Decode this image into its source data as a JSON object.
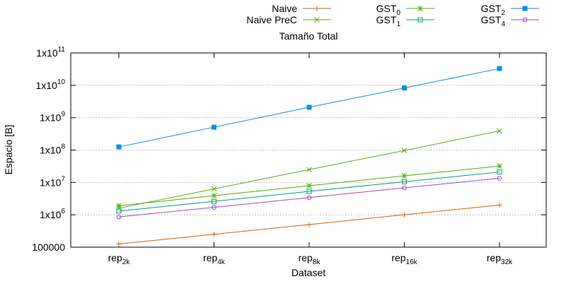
{
  "chart_data": {
    "type": "line",
    "title": "Tamaño Total",
    "xlabel": "Dataset",
    "ylabel": "Espacio [B]",
    "yscale": "log",
    "ylim": [
      100000,
      100000000000
    ],
    "grid": "y-dotted",
    "legend_position": "top",
    "categories": [
      {
        "base": "rep",
        "sub": "2k"
      },
      {
        "base": "rep",
        "sub": "4k"
      },
      {
        "base": "rep",
        "sub": "8k"
      },
      {
        "base": "rep",
        "sub": "16k"
      },
      {
        "base": "rep",
        "sub": "32k"
      }
    ],
    "y_ticks": [
      {
        "value": 100000,
        "base": "100000",
        "sup": ""
      },
      {
        "value": 1000000,
        "base": "1x10",
        "sup": "6"
      },
      {
        "value": 10000000,
        "base": "1x10",
        "sup": "7"
      },
      {
        "value": 100000000,
        "base": "1x10",
        "sup": "8"
      },
      {
        "value": 1000000000,
        "base": "1x10",
        "sup": "9"
      },
      {
        "value": 10000000000,
        "base": "1x10",
        "sup": "10"
      },
      {
        "value": 100000000000,
        "base": "1x10",
        "sup": "11"
      }
    ],
    "series": [
      {
        "name": "Naive",
        "name_sub": "",
        "color": "#d95f02",
        "marker": "plus",
        "values": [
          125000,
          250000,
          500000,
          1000000,
          2000000
        ]
      },
      {
        "name": "Naive PreC",
        "name_sub": "",
        "color": "#66a61e",
        "marker": "x",
        "values": [
          1600000,
          6300000,
          25000000,
          97000000,
          390000000
        ]
      },
      {
        "name": "GST",
        "name_sub": "0",
        "color": "#4daf00",
        "marker": "star",
        "values": [
          1900000,
          3900000,
          7900000,
          16000000,
          32000000
        ]
      },
      {
        "name": "GST",
        "name_sub": "1",
        "color": "#009e73",
        "marker": "open-square",
        "values": [
          1300000,
          2600000,
          5300000,
          10500000,
          21000000
        ]
      },
      {
        "name": "GST",
        "name_sub": "2",
        "color": "#0a8ee6",
        "marker": "filled-square",
        "values": [
          125000000,
          510000000,
          2100000000,
          8300000000,
          33000000000
        ]
      },
      {
        "name": "GST",
        "name_sub": "4",
        "color": "#9b4dca",
        "marker": "open-circle",
        "values": [
          860000,
          1700000,
          3400000,
          6800000,
          13500000
        ]
      }
    ]
  }
}
